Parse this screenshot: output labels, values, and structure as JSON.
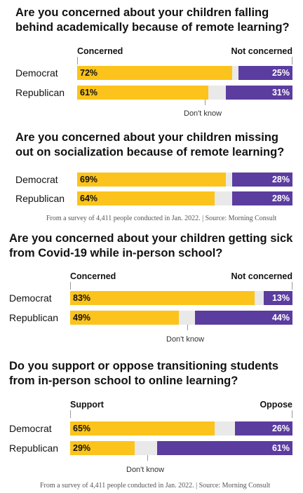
{
  "chart_data": [
    {
      "type": "bar",
      "stacked": true,
      "orientation": "horizontal",
      "title": "Are you concerned about your children falling behind academically because of remote learning?",
      "categories": [
        "Democrat",
        "Republican"
      ],
      "left_label": "Concerned",
      "right_label": "Not concerned",
      "middle_label": "Don't know",
      "series": [
        {
          "name": "Concerned",
          "values": [
            72,
            61
          ],
          "color": "#fbc31c"
        },
        {
          "name": "Don't know",
          "values": [
            3,
            8
          ],
          "color": "#e9e9e9"
        },
        {
          "name": "Not concerned",
          "values": [
            25,
            31
          ],
          "color": "#5b3c9f"
        }
      ]
    },
    {
      "type": "bar",
      "stacked": true,
      "orientation": "horizontal",
      "title": "Are you concerned about your children missing out on socialization because of remote learning?",
      "categories": [
        "Democrat",
        "Republican"
      ],
      "series": [
        {
          "name": "Concerned",
          "values": [
            69,
            64
          ],
          "color": "#fbc31c"
        },
        {
          "name": "Don't know",
          "values": [
            3,
            8
          ],
          "color": "#e9e9e9"
        },
        {
          "name": "Not concerned",
          "values": [
            28,
            28
          ],
          "color": "#5b3c9f"
        }
      ],
      "source": "From a survey of 4,411 people conducted in Jan. 2022. | Source: Morning Consult"
    },
    {
      "type": "bar",
      "stacked": true,
      "orientation": "horizontal",
      "title": "Are you concerned about your children getting sick from Covid-19 while in-person school?",
      "categories": [
        "Democrat",
        "Republican"
      ],
      "left_label": "Concerned",
      "right_label": "Not concerned",
      "middle_label": "Don't know",
      "series": [
        {
          "name": "Concerned",
          "values": [
            83,
            49
          ],
          "color": "#fbc31c"
        },
        {
          "name": "Don't know",
          "values": [
            4,
            7
          ],
          "color": "#e9e9e9"
        },
        {
          "name": "Not concerned",
          "values": [
            13,
            44
          ],
          "color": "#5b3c9f"
        }
      ]
    },
    {
      "type": "bar",
      "stacked": true,
      "orientation": "horizontal",
      "title": "Do you support or oppose transitioning students from in-person school to online learning?",
      "categories": [
        "Democrat",
        "Republican"
      ],
      "left_label": "Support",
      "right_label": "Oppose",
      "middle_label": "Don't know",
      "series": [
        {
          "name": "Support",
          "values": [
            65,
            29
          ],
          "color": "#fbc31c"
        },
        {
          "name": "Don't know",
          "values": [
            9,
            10
          ],
          "color": "#e9e9e9"
        },
        {
          "name": "Oppose",
          "values": [
            26,
            61
          ],
          "color": "#5b3c9f"
        }
      ],
      "source": "From a survey of 4,411 people conducted in Jan. 2022. | Source: Morning Consult"
    }
  ]
}
